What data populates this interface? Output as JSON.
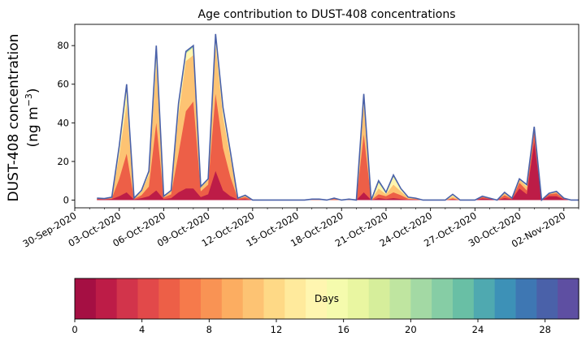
{
  "chart_data": {
    "type": "area",
    "title": "Age contribution to DUST-408 concentrations",
    "ylabel_line1": "DUST-408 concentration",
    "ylabel_line2": "(ng m",
    "ylabel_unit_sup": "−3",
    "ylabel_close": ")",
    "yticks": [
      0,
      20,
      40,
      60,
      80
    ],
    "ylim": [
      -4,
      91
    ],
    "xlim_days": [
      0,
      34
    ],
    "xticks": [
      {
        "day": 0,
        "label": "30-Sep-2020"
      },
      {
        "day": 3,
        "label": "03-Oct-2020"
      },
      {
        "day": 6,
        "label": "06-Oct-2020"
      },
      {
        "day": 9,
        "label": "09-Oct-2020"
      },
      {
        "day": 12,
        "label": "12-Oct-2020"
      },
      {
        "day": 15,
        "label": "15-Oct-2020"
      },
      {
        "day": 18,
        "label": "18-Oct-2020"
      },
      {
        "day": 21,
        "label": "21-Oct-2020"
      },
      {
        "day": 24,
        "label": "24-Oct-2020"
      },
      {
        "day": 27,
        "label": "27-Oct-2020"
      },
      {
        "day": 30,
        "label": "30-Oct-2020"
      },
      {
        "day": 33,
        "label": "02-Nov-2020"
      }
    ],
    "x_start_day": 1.5,
    "x_step_days": 0.5,
    "total": [
      1,
      0.8,
      1.5,
      28,
      60,
      1,
      5,
      15,
      80,
      2,
      5,
      50,
      77,
      80,
      7,
      11,
      86,
      48,
      25,
      1,
      2.5,
      0,
      0,
      0,
      0,
      0,
      0,
      0,
      0,
      0.5,
      0.5,
      0,
      1,
      0,
      0.5,
      0,
      55,
      0,
      10,
      4,
      13,
      6,
      1.5,
      1,
      0,
      0,
      0,
      0,
      3,
      0,
      0,
      0,
      2,
      1,
      0,
      4,
      1,
      11,
      8,
      38,
      0,
      3.5,
      4.5,
      1,
      0,
      0
    ],
    "age_shares": [
      {
        "age": 2,
        "values": [
          0.4,
          0.3,
          0.5,
          2,
          4,
          0.3,
          1,
          2,
          5,
          0.5,
          1,
          4,
          6,
          6,
          1.5,
          3,
          15,
          5,
          2,
          0.3,
          0.5,
          0,
          0,
          0,
          0,
          0,
          0,
          0,
          0,
          0,
          0,
          0,
          0,
          0,
          0,
          0,
          4,
          0,
          1,
          0.5,
          1,
          0.5,
          0.2,
          0.2,
          0,
          0,
          0,
          0,
          0.3,
          0,
          0,
          0,
          0.8,
          0.5,
          0,
          1,
          0.4,
          6,
          3,
          30,
          0,
          2,
          2,
          0.4,
          0,
          0
        ]
      },
      {
        "age": 5,
        "values": [
          0.3,
          0.2,
          0.4,
          9,
          20,
          0.3,
          1.5,
          5,
          35,
          0.8,
          2,
          20,
          40,
          45,
          3,
          5,
          40,
          22,
          10,
          0.4,
          1,
          0,
          0,
          0,
          0,
          0,
          0,
          0,
          0,
          0.3,
          0.3,
          0,
          0.5,
          0,
          0.3,
          0,
          30,
          0,
          2,
          1.5,
          3,
          2,
          0.4,
          0.3,
          0,
          0,
          0,
          0,
          0.6,
          0,
          0,
          0,
          0.7,
          0.3,
          0,
          1.5,
          0.3,
          3,
          2,
          5,
          0,
          1,
          1.5,
          0.3,
          0,
          0
        ]
      },
      {
        "age": 10,
        "values": [
          0.2,
          0.2,
          0.4,
          12,
          26,
          0.3,
          1.8,
          6,
          30,
          0.5,
          1.5,
          20,
          26,
          24,
          2,
          2.5,
          25,
          16,
          10,
          0.2,
          0.7,
          0,
          0,
          0,
          0,
          0,
          0,
          0,
          0,
          0.1,
          0.1,
          0,
          0.3,
          0,
          0.1,
          0,
          15,
          0,
          3,
          1,
          4,
          2,
          0.5,
          0.3,
          0,
          0,
          0,
          0,
          1,
          0,
          0,
          0,
          0.3,
          0.1,
          0,
          1,
          0.2,
          1.5,
          2,
          2,
          0,
          0.4,
          0.7,
          0.2,
          0,
          0
        ]
      },
      {
        "age": 14,
        "values": [
          0.1,
          0.1,
          0.2,
          4,
          8,
          0.1,
          0.5,
          1.5,
          8,
          0.2,
          0.4,
          5,
          4,
          4,
          0.4,
          0.4,
          5,
          4,
          2.5,
          0.1,
          0.3,
          0,
          0,
          0,
          0,
          0,
          0,
          0,
          0,
          0.1,
          0.1,
          0,
          0.2,
          0,
          0.1,
          0,
          5,
          0,
          3,
          0.7,
          4,
          1.2,
          0.3,
          0.2,
          0,
          0,
          0,
          0,
          0.9,
          0,
          0,
          0,
          0.2,
          0.1,
          0,
          0.4,
          0.1,
          0.4,
          0.8,
          0.6,
          0,
          0.1,
          0.3,
          0.1,
          0,
          0
        ]
      },
      {
        "age": 20,
        "values": [
          0,
          0,
          0,
          0.7,
          1.5,
          0,
          0.2,
          0.4,
          1.5,
          0,
          0.1,
          0.8,
          0.8,
          0.8,
          0.1,
          0.1,
          0.8,
          0.8,
          0.4,
          0,
          0,
          0,
          0,
          0,
          0,
          0,
          0,
          0,
          0,
          0,
          0,
          0,
          0,
          0,
          0,
          0,
          0.7,
          0,
          0.7,
          0.2,
          0.7,
          0.2,
          0.1,
          0,
          0,
          0,
          0,
          0,
          0.2,
          0,
          0,
          0,
          0,
          0,
          0,
          0.1,
          0,
          0.1,
          0.1,
          0.2,
          0,
          0,
          0,
          0,
          0,
          0
        ]
      },
      {
        "age": 26,
        "values": [
          0,
          0,
          0,
          0.2,
          0.3,
          0,
          0,
          0.1,
          0.3,
          0,
          0,
          0.2,
          0.2,
          0.2,
          0,
          0,
          0.2,
          0.2,
          0.1,
          0,
          0,
          0,
          0,
          0,
          0,
          0,
          0,
          0,
          0,
          0,
          0,
          0,
          0,
          0,
          0,
          0,
          0.2,
          0,
          0.2,
          0.1,
          0.2,
          0.1,
          0,
          0,
          0,
          0,
          0,
          0,
          0,
          0,
          0,
          0,
          0,
          0,
          0,
          0,
          0,
          0,
          0,
          0.1,
          0,
          0,
          0,
          0,
          0,
          0
        ]
      }
    ],
    "colorbar": {
      "label": "Days",
      "ticks": [
        0,
        4,
        8,
        12,
        16,
        20,
        24,
        28
      ],
      "range": [
        0,
        30
      ],
      "colors": [
        "#a50f43",
        "#bd1c47",
        "#d2344b",
        "#e2494a",
        "#ed5f47",
        "#f67a4b",
        "#f99354",
        "#fcad61",
        "#fdc373",
        "#fed986",
        "#ffea9c",
        "#fff6b0",
        "#f5fbad",
        "#e9f6a1",
        "#d6ee9b",
        "#bfe5a0",
        "#a3d9a4",
        "#86cda5",
        "#69bfa5",
        "#4fa9b0",
        "#3d91b7",
        "#3e77b3",
        "#4a61a9",
        "#5e4fa2"
      ]
    },
    "outline_color": "#4a61a9"
  }
}
